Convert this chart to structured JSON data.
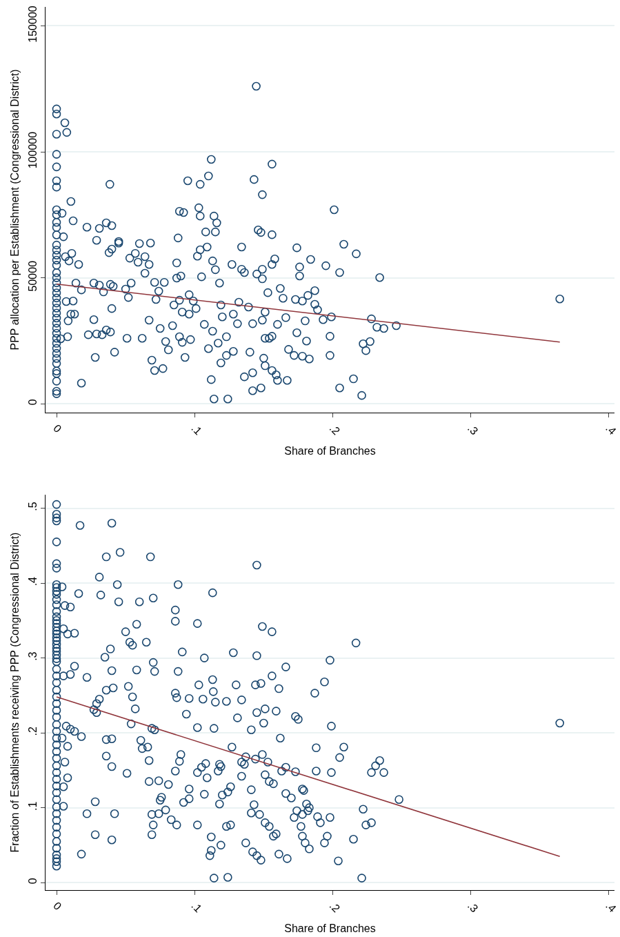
{
  "chart_data": [
    {
      "type": "scatter",
      "xlabel": "Share of Branches",
      "ylabel": "PPP allocation per Establishment (Congressional District)",
      "xlim": [
        -0.008,
        0.404
      ],
      "ylim": [
        -3500,
        157500
      ],
      "xticks": [
        0,
        {
          "value": 0.1,
          "label": ".1"
        },
        {
          "value": 0.2,
          "label": ".2"
        },
        {
          "value": 0.3,
          "label": ".3"
        },
        {
          "value": 0.4,
          "label": ".4"
        }
      ],
      "yticks": [
        0,
        50000,
        100000,
        150000
      ],
      "grid": "y",
      "marker": "circle",
      "series": [
        {
          "color": "#1a476f",
          "x": [
            0,
            0,
            0,
            0,
            0,
            0,
            0,
            0,
            0,
            0,
            0,
            0,
            0,
            0,
            0,
            0,
            0,
            0,
            0,
            0,
            0,
            0,
            0,
            0,
            0,
            0,
            0,
            0,
            0,
            0,
            0,
            0,
            0,
            0,
            0,
            0,
            0,
            0,
            0,
            0,
            0,
            0.006,
            0.0074,
            0.004,
            0.0104,
            0.012,
            0.005,
            0.0064,
            0.011,
            0.009,
            0.016,
            0.014,
            0.018,
            0.012,
            0.007,
            0.018,
            0.003,
            0.0084,
            0.0104,
            0.013,
            0.008,
            0.022,
            0.029,
            0.031,
            0.036,
            0.04,
            0.0386,
            0.045,
            0.045,
            0.038,
            0.04,
            0.027,
            0.031,
            0.034,
            0.039,
            0.041,
            0.023,
            0.027,
            0.028,
            0.029,
            0.033,
            0.036,
            0.039,
            0.04,
            0.042,
            0.05,
            0.051,
            0.052,
            0.054,
            0.053,
            0.057,
            0.06,
            0.068,
            0.059,
            0.064,
            0.067,
            0.064,
            0.062,
            0.069,
            0.071,
            0.077,
            0.067,
            0.072,
            0.074,
            0.078,
            0.071,
            0.075,
            0.079,
            0.081,
            0.084,
            0.088,
            0.089,
            0.092,
            0.087,
            0.087,
            0.09,
            0.085,
            0.089,
            0.091,
            0.089,
            0.091,
            0.093,
            0.095,
            0.096,
            0.096,
            0.097,
            0.099,
            0.101,
            0.102,
            0.104,
            0.103,
            0.104,
            0.104,
            0.105,
            0.108,
            0.109,
            0.112,
            0.11,
            0.114,
            0.115,
            0.116,
            0.113,
            0.115,
            0.118,
            0.119,
            0.12,
            0.107,
            0.11,
            0.113,
            0.112,
            0.114,
            0.117,
            0.119,
            0.123,
            0.124,
            0.123,
            0.128,
            0.127,
            0.134,
            0.131,
            0.128,
            0.132,
            0.134,
            0.136,
            0.136,
            0.139,
            0.14,
            0.142,
            0.142,
            0.143,
            0.1446,
            0.146,
            0.148,
            0.149,
            0.145,
            0.149,
            0.149,
            0.151,
            0.153,
            0.149,
            0.151,
            0.154,
            0.15,
            0.151,
            0.156,
            0.156,
            0.156,
            0.158,
            0.16,
            0.156,
            0.156,
            0.159,
            0.16,
            0.148,
            0.142,
            0.162,
            0.164,
            0.167,
            0.166,
            0.168,
            0.172,
            0.174,
            0.174,
            0.176,
            0.176,
            0.173,
            0.178,
            0.18,
            0.181,
            0.178,
            0.182,
            0.184,
            0.183,
            0.187,
            0.189,
            0.187,
            0.193,
            0.195,
            0.198,
            0.198,
            0.199,
            0.201,
            0.205,
            0.208,
            0.205,
            0.217,
            0.215,
            0.222,
            0.221,
            0.224,
            0.227,
            0.228,
            0.232,
            0.234,
            0.237,
            0.246,
            0.3644
          ],
          "values": [
            117000,
            115000,
            107000,
            99000,
            94000,
            88500,
            86000,
            77000,
            75000,
            72000,
            70000,
            67000,
            63000,
            61000,
            59000,
            57000,
            55000,
            52000,
            50000,
            48000,
            46000,
            44000,
            42000,
            40000,
            38000,
            36000,
            34000,
            32000,
            30000,
            28000,
            26000,
            24000,
            22000,
            20000,
            18000,
            16000,
            13000,
            12000,
            9000,
            5000,
            4000,
            111500,
            107700,
            75600,
            80300,
            72600,
            66300,
            58400,
            59700,
            56700,
            55300,
            47900,
            45200,
            40800,
            40600,
            8200,
            25800,
            32900,
            35600,
            35600,
            26600,
            70100,
            64900,
            69600,
            71800,
            70700,
            87100,
            64400,
            63800,
            60000,
            61400,
            47900,
            47100,
            44400,
            47400,
            46600,
            27400,
            33400,
            18400,
            27700,
            27400,
            29300,
            28500,
            37800,
            20500,
            45500,
            26000,
            42200,
            47900,
            57800,
            59700,
            63600,
            63800,
            56200,
            51800,
            55300,
            58400,
            26000,
            17300,
            13200,
            14000,
            33200,
            41400,
            44700,
            48200,
            48200,
            29900,
            24700,
            21400,
            31000,
            65800,
            76400,
            75900,
            55900,
            49900,
            50700,
            39200,
            41100,
            36400,
            26600,
            24400,
            18400,
            88500,
            43300,
            35600,
            25500,
            40800,
            37800,
            58600,
            87100,
            77800,
            74500,
            61100,
            50400,
            68200,
            62200,
            97000,
            90400,
            74500,
            68200,
            71800,
            56700,
            53200,
            47900,
            39200,
            34500,
            31500,
            21900,
            28800,
            9600,
            1900,
            24100,
            16200,
            26600,
            1900,
            19200,
            20800,
            55300,
            62200,
            31800,
            35600,
            40300,
            53400,
            52100,
            10700,
            38400,
            20500,
            12300,
            31800,
            89000,
            126000,
            69000,
            68000,
            83000,
            51500,
            53400,
            49600,
            36400,
            44100,
            33200,
            26000,
            26000,
            18100,
            15100,
            95100,
            67100,
            55300,
            57500,
            31500,
            26800,
            13200,
            11500,
            9300,
            6300,
            5200,
            45800,
            41900,
            9300,
            34200,
            21600,
            19200,
            28200,
            61900,
            54300,
            50700,
            41400,
            40800,
            32900,
            24900,
            18900,
            43000,
            57300,
            17800,
            44900,
            37300,
            39500,
            33400,
            54800,
            26800,
            19200,
            34500,
            77000,
            6300,
            63300,
            52100,
            59500,
            9900,
            23800,
            3300,
            21100,
            24700,
            33700,
            30400,
            50100,
            29900,
            31000,
            41600
          ]
        },
        {
          "type": "line",
          "marker": "none",
          "color": "#90353b",
          "x": [
            0,
            0.3644
          ],
          "values": [
            47500,
            24500
          ]
        }
      ]
    },
    {
      "type": "scatter",
      "xlabel": "Share of Branches",
      "ylabel": "Fraction of Establishments receiving PPP (Congressional District)",
      "xlim": [
        -0.008,
        0.404
      ],
      "ylim": [
        -0.01,
        0.518
      ],
      "xticks": [
        0,
        {
          "value": 0.1,
          "label": ".1"
        },
        {
          "value": 0.2,
          "label": ".2"
        },
        {
          "value": 0.3,
          "label": ".3"
        },
        {
          "value": 0.4,
          "label": ".4"
        }
      ],
      "yticks": [
        0,
        {
          "value": 0.1,
          "label": ".1"
        },
        {
          "value": 0.2,
          "label": ".2"
        },
        {
          "value": 0.3,
          "label": ".3"
        },
        {
          "value": 0.4,
          "label": ".4"
        },
        {
          "value": 0.5,
          "label": ".5"
        }
      ],
      "grid": "y",
      "marker": "circle",
      "series": [
        {
          "color": "#1a476f",
          "x": [
            0,
            0,
            0,
            0,
            0,
            0,
            0,
            0,
            0,
            0,
            0,
            0,
            0,
            0,
            0,
            0,
            0,
            0,
            0,
            0,
            0,
            0,
            0,
            0,
            0,
            0,
            0,
            0,
            0,
            0,
            0,
            0,
            0,
            0,
            0,
            0,
            0,
            0,
            0,
            0,
            0,
            0,
            0,
            0,
            0,
            0,
            0,
            0,
            0,
            0,
            0,
            0,
            0,
            0,
            0,
            0,
            0,
            0,
            0,
            0.017,
            0.04,
            0.046,
            0.036,
            0.068,
            0.145,
            0.031,
            0.044,
            0.004,
            0.088,
            0.016,
            0.032,
            0.045,
            0.006,
            0.01,
            0.06,
            0.07,
            0.113,
            0.086,
            0.058,
            0.102,
            0.086,
            0.149,
            0.156,
            0.005,
            0.008,
            0.013,
            0.05,
            0.053,
            0.055,
            0.065,
            0.091,
            0.128,
            0.145,
            0.2168,
            0.198,
            0.039,
            0.035,
            0.013,
            0.01,
            0.005,
            0.022,
            0.04,
            0.058,
            0.07,
            0.071,
            0.088,
            0.107,
            0.113,
            0.166,
            0.156,
            0.194,
            0.148,
            0.144,
            0.103,
            0.1135,
            0.13,
            0.187,
            0.161,
            0.052,
            0.041,
            0.036,
            0.031,
            0.029,
            0.027,
            0.029,
            0.055,
            0.057,
            0.086,
            0.087,
            0.096,
            0.106,
            0.115,
            0.123,
            0.134,
            0.151,
            0.145,
            0.15,
            0.159,
            0.173,
            0.175,
            0.162,
            0.141,
            0.131,
            0.114,
            0.102,
            0.094,
            0.071,
            0.069,
            0.054,
            0.036,
            0.061,
            0.062,
            0.066,
            0.04,
            0.007,
            0.01,
            0.013,
            0.018,
            0.004,
            0.008,
            0.006,
            0.008,
            0.005,
            0.005,
            0.028,
            0.022,
            0.042,
            0.028,
            0.04,
            0.018,
            0.036,
            0.04,
            0.051,
            0.067,
            0.067,
            0.074,
            0.076,
            0.075,
            0.081,
            0.069,
            0.07,
            0.069,
            0.074,
            0.079,
            0.087,
            0.083,
            0.092,
            0.096,
            0.096,
            0.09,
            0.089,
            0.086,
            0.102,
            0.105,
            0.108,
            0.109,
            0.107,
            0.102,
            0.112,
            0.112,
            0.111,
            0.114,
            0.124,
            0.118,
            0.12,
            0.124,
            0.118,
            0.119,
            0.117,
            0.127,
            0.126,
            0.123,
            0.119,
            0.126,
            0.134,
            0.134,
            0.137,
            0.136,
            0.137,
            0.141,
            0.143,
            0.141,
            0.147,
            0.142,
            0.145,
            0.148,
            0.144,
            0.149,
            0.153,
            0.151,
            0.154,
            0.157,
            0.151,
            0.154,
            0.159,
            0.157,
            0.161,
            0.167,
            0.163,
            0.166,
            0.166,
            0.17,
            0.173,
            0.178,
            0.179,
            0.181,
            0.183,
            0.182,
            0.174,
            0.172,
            0.178,
            0.177,
            0.178,
            0.18,
            0.183,
            0.188,
            0.188,
            0.191,
            0.189,
            0.199,
            0.208,
            0.205,
            0.199,
            0.198,
            0.194,
            0.196,
            0.204,
            0.221,
            0.222,
            0.224,
            0.228,
            0.215,
            0.228,
            0.231,
            0.234,
            0.237,
            0.248,
            0.3644
          ],
          "values": [
            0.505,
            0.492,
            0.487,
            0.483,
            0.455,
            0.426,
            0.42,
            0.398,
            0.394,
            0.389,
            0.385,
            0.378,
            0.371,
            0.362,
            0.355,
            0.35,
            0.346,
            0.341,
            0.336,
            0.332,
            0.327,
            0.323,
            0.318,
            0.313,
            0.309,
            0.304,
            0.299,
            0.295,
            0.285,
            0.276,
            0.267,
            0.257,
            0.248,
            0.239,
            0.23,
            0.221,
            0.211,
            0.202,
            0.193,
            0.184,
            0.175,
            0.166,
            0.156,
            0.147,
            0.138,
            0.129,
            0.12,
            0.111,
            0.101,
            0.092,
            0.083,
            0.074,
            0.065,
            0.055,
            0.046,
            0.037,
            0.032,
            0.028,
            0.022,
            0.477,
            0.48,
            0.441,
            0.435,
            0.435,
            0.424,
            0.408,
            0.398,
            0.395,
            0.398,
            0.386,
            0.384,
            0.375,
            0.37,
            0.368,
            0.375,
            0.38,
            0.387,
            0.364,
            0.345,
            0.346,
            0.349,
            0.342,
            0.335,
            0.339,
            0.332,
            0.333,
            0.335,
            0.321,
            0.317,
            0.321,
            0.308,
            0.307,
            0.303,
            0.32,
            0.297,
            0.312,
            0.301,
            0.289,
            0.278,
            0.276,
            0.274,
            0.283,
            0.284,
            0.294,
            0.282,
            0.282,
            0.3,
            0.271,
            0.288,
            0.276,
            0.268,
            0.266,
            0.264,
            0.264,
            0.255,
            0.264,
            0.253,
            0.259,
            0.262,
            0.26,
            0.257,
            0.245,
            0.239,
            0.231,
            0.227,
            0.248,
            0.232,
            0.253,
            0.247,
            0.246,
            0.245,
            0.241,
            0.242,
            0.244,
            0.232,
            0.227,
            0.213,
            0.229,
            0.222,
            0.218,
            0.193,
            0.204,
            0.22,
            0.206,
            0.207,
            0.225,
            0.204,
            0.206,
            0.212,
            0.191,
            0.19,
            0.179,
            0.181,
            0.192,
            0.209,
            0.205,
            0.202,
            0.195,
            0.193,
            0.182,
            0.161,
            0.14,
            0.128,
            0.102,
            0.108,
            0.092,
            0.092,
            0.064,
            0.057,
            0.038,
            0.169,
            0.155,
            0.146,
            0.163,
            0.135,
            0.136,
            0.114,
            0.11,
            0.131,
            0.091,
            0.077,
            0.064,
            0.092,
            0.097,
            0.077,
            0.084,
            0.107,
            0.125,
            0.112,
            0.171,
            0.162,
            0.149,
            0.147,
            0.154,
            0.159,
            0.14,
            0.118,
            0.077,
            0.061,
            0.043,
            0.036,
            0.006,
            0.007,
            0.105,
            0.117,
            0.121,
            0.158,
            0.155,
            0.149,
            0.181,
            0.128,
            0.075,
            0.05,
            0.077,
            0.142,
            0.161,
            0.168,
            0.158,
            0.053,
            0.124,
            0.104,
            0.093,
            0.091,
            0.041,
            0.036,
            0.03,
            0.165,
            0.171,
            0.161,
            0.144,
            0.135,
            0.132,
            0.08,
            0.075,
            0.065,
            0.062,
            0.038,
            0.032,
            0.149,
            0.154,
            0.119,
            0.113,
            0.148,
            0.125,
            0.123,
            0.105,
            0.1,
            0.096,
            0.096,
            0.087,
            0.091,
            0.075,
            0.062,
            0.053,
            0.045,
            0.18,
            0.149,
            0.08,
            0.088,
            0.209,
            0.181,
            0.167,
            0.147,
            0.087,
            0.053,
            0.062,
            0.029,
            0.006,
            0.098,
            0.077,
            0.08,
            0.058,
            0.147,
            0.156,
            0.163,
            0.147,
            0.111,
            0.213
          ]
        },
        {
          "type": "line",
          "marker": "none",
          "color": "#90353b",
          "x": [
            0,
            0.3644
          ],
          "values": [
            0.248,
            0.035
          ]
        }
      ]
    }
  ]
}
